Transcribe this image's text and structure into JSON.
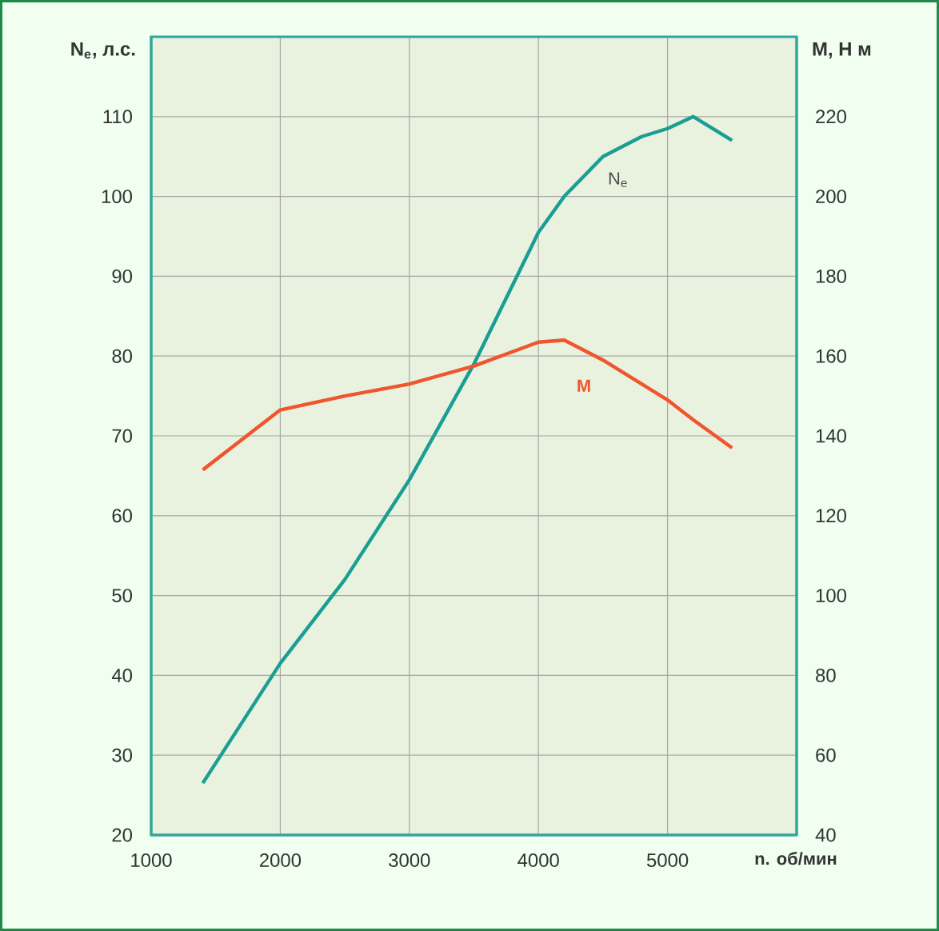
{
  "chart_data": {
    "type": "line",
    "xlabel": "n. об/мин",
    "ylabel": "N$_{e}$, л.с.",
    "y2label": "M, Н м",
    "x": [
      1400,
      2000,
      2500,
      3000,
      3500,
      4000,
      4200,
      4500,
      4800,
      5000,
      5200,
      5500
    ],
    "series": [
      {
        "name": "N$_{e}$",
        "color": "#1a9e94",
        "values": [
          26.5,
          41.5,
          52,
          64.5,
          79,
          95.5,
          100,
          105,
          107.5,
          108.5,
          110,
          107
        ]
      },
      {
        "name": "M",
        "color": "#f0552e",
        "axis": "y2",
        "values": [
          131.5,
          146.5,
          150,
          153,
          157.5,
          163.5,
          164,
          159,
          153,
          149,
          144,
          137
        ]
      }
    ],
    "xlim": [
      1000,
      6000
    ],
    "xticks": [
      1000,
      2000,
      3000,
      4000,
      5000
    ],
    "ylim": [
      20,
      120
    ],
    "yticks": [
      20,
      30,
      40,
      50,
      60,
      70,
      80,
      90,
      100,
      110
    ],
    "y2lim": [
      40,
      240
    ],
    "y2ticks": [
      40,
      60,
      80,
      100,
      120,
      140,
      160,
      180,
      200,
      220
    ],
    "grid": true,
    "marker": "none",
    "line_style": "solid"
  }
}
